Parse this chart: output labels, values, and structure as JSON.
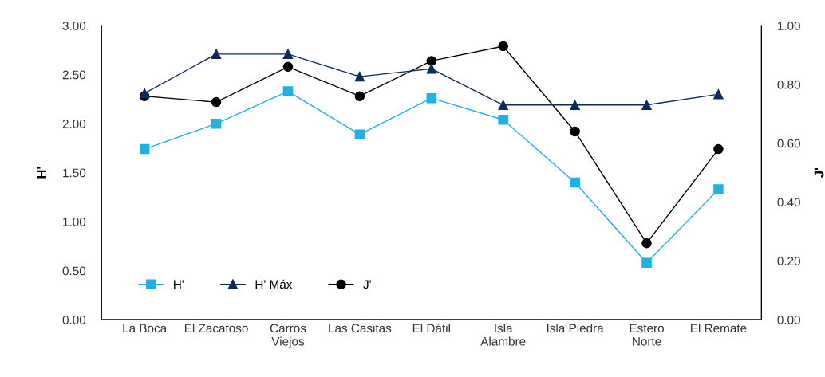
{
  "chart_data": {
    "type": "line",
    "ylabel": "H'",
    "y2label": "J'",
    "categories": [
      "La Boca",
      "El Zacatoso",
      "Carros\nViejos",
      "Las Casitas",
      "El Dátil",
      "Isla\nAlambre",
      "Isla Piedra",
      "Estero\nNorte",
      "El Remate"
    ],
    "series": [
      {
        "name": "H'",
        "color": "#1fb0e6",
        "marker": "square",
        "values": [
          1.74,
          2.0,
          2.33,
          1.89,
          2.26,
          2.04,
          1.4,
          0.58,
          1.33
        ]
      },
      {
        "name": "H' Máx",
        "color": "#0d2a5e",
        "marker": "triangle",
        "values": [
          2.31,
          2.71,
          2.71,
          2.48,
          2.56,
          2.19,
          2.19,
          2.19,
          2.3
        ]
      },
      {
        "name": "J'",
        "color": "#000000",
        "marker": "circle",
        "axis": "y2",
        "values": [
          0.76,
          0.74,
          0.86,
          0.76,
          0.88,
          0.93,
          0.64,
          0.26,
          0.58
        ]
      }
    ],
    "ylim": [
      0,
      3
    ],
    "yticks": [
      {
        "value": 0,
        "label": "0.00"
      },
      {
        "value": 0.5,
        "label": "0.50"
      },
      {
        "value": 1,
        "label": "1.00"
      },
      {
        "value": 1.5,
        "label": "1.50"
      },
      {
        "value": 2,
        "label": "2.00"
      },
      {
        "value": 2.5,
        "label": "2.50"
      },
      {
        "value": 3,
        "label": "3.00"
      }
    ],
    "y2lim": [
      0,
      1
    ],
    "y2ticks": [
      {
        "value": 0,
        "label": "0.00"
      },
      {
        "value": 0.2,
        "label": "0.20"
      },
      {
        "value": 0.4,
        "label": "0.40"
      },
      {
        "value": 0.6,
        "label": "0.60"
      },
      {
        "value": 0.8,
        "label": "0.80"
      },
      {
        "value": 1,
        "label": "1.00"
      }
    ],
    "grid": false,
    "legend": "bottom left",
    "line_style": "solid"
  }
}
